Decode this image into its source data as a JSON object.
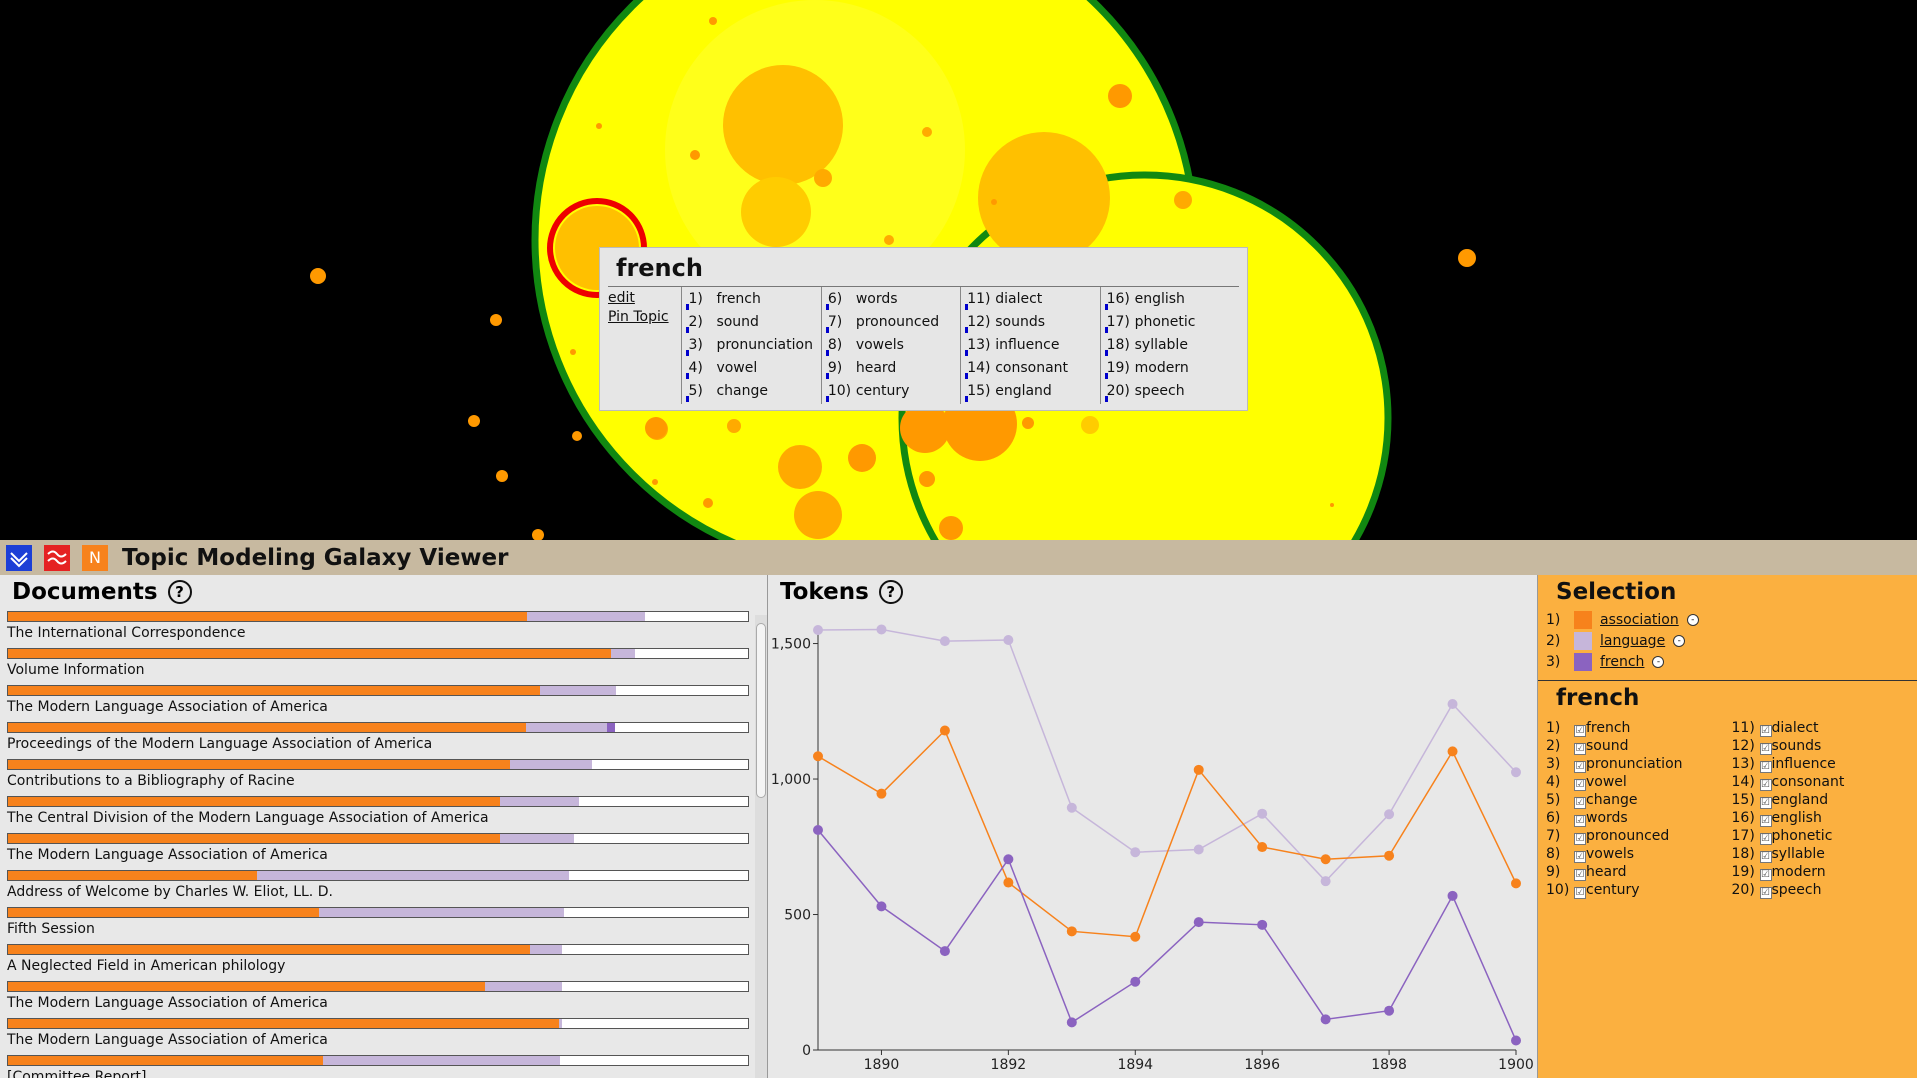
{
  "app": {
    "title": "Topic Modeling Galaxy Viewer"
  },
  "popup": {
    "title": "french",
    "edit_label": "edit",
    "pin_label": "Pin Topic",
    "words": [
      {
        "num": "1)",
        "word": "french"
      },
      {
        "num": "2)",
        "word": "sound"
      },
      {
        "num": "3)",
        "word": "pronunciation"
      },
      {
        "num": "4)",
        "word": "vowel"
      },
      {
        "num": "5)",
        "word": "change"
      },
      {
        "num": "6)",
        "word": "words"
      },
      {
        "num": "7)",
        "word": "pronounced"
      },
      {
        "num": "8)",
        "word": "vowels"
      },
      {
        "num": "9)",
        "word": "heard"
      },
      {
        "num": "10)",
        "word": "century"
      },
      {
        "num": "11)",
        "word": "dialect"
      },
      {
        "num": "12)",
        "word": "sounds"
      },
      {
        "num": "13)",
        "word": "influence"
      },
      {
        "num": "14)",
        "word": "consonant"
      },
      {
        "num": "15)",
        "word": "england"
      },
      {
        "num": "16)",
        "word": "english"
      },
      {
        "num": "17)",
        "word": "phonetic"
      },
      {
        "num": "18)",
        "word": "syllable"
      },
      {
        "num": "19)",
        "word": "modern"
      },
      {
        "num": "20)",
        "word": "speech"
      }
    ]
  },
  "documents": {
    "title": "Documents",
    "help": "?",
    "items": [
      {
        "title": "The International Correspondence",
        "assoc": 0.701,
        "lang": 0.16,
        "french": 0
      },
      {
        "title": "Volume Information",
        "assoc": 0.815,
        "lang": 0.032,
        "french": 0
      },
      {
        "title": "The Modern Language Association of America",
        "assoc": 0.719,
        "lang": 0.103,
        "french": 0
      },
      {
        "title": "Proceedings of the Modern Language Association of America",
        "assoc": 0.7,
        "lang": 0.11,
        "french": 0.01
      },
      {
        "title": "Contributions to a Bibliography of Racine",
        "assoc": 0.679,
        "lang": 0.11,
        "french": 0
      },
      {
        "title": "The Central Division of the Modern Language Association of America",
        "assoc": 0.665,
        "lang": 0.107,
        "french": 0
      },
      {
        "title": "The Modern Language Association of America",
        "assoc": 0.665,
        "lang": 0.1,
        "french": 0
      },
      {
        "title": "Address of Welcome by Charles W. Eliot, LL. D.",
        "assoc": 0.336,
        "lang": 0.422,
        "french": 0
      },
      {
        "title": "Fifth Session",
        "assoc": 0.42,
        "lang": 0.332,
        "french": 0
      },
      {
        "title": "A Neglected Field in American philology",
        "assoc": 0.706,
        "lang": 0.042,
        "french": 0
      },
      {
        "title": "The Modern Language Association of America",
        "assoc": 0.645,
        "lang": 0.103,
        "french": 0
      },
      {
        "title": "The Modern Language Association of America",
        "assoc": 0.745,
        "lang": 0.003,
        "french": 0
      },
      {
        "title": "[Committee Report]",
        "assoc": 0.426,
        "lang": 0.32,
        "french": 0
      }
    ]
  },
  "tokens": {
    "title": "Tokens",
    "help": "?"
  },
  "chart_data": {
    "type": "line",
    "x": [
      1889,
      1890,
      1891,
      1892,
      1893,
      1894,
      1895,
      1896,
      1897,
      1898,
      1899,
      1900
    ],
    "xticks": [
      "1890",
      "1892",
      "1894",
      "1896",
      "1898",
      "1900"
    ],
    "yticks": [
      "0",
      "500",
      "1,000",
      "1,500"
    ],
    "ylim": [
      0,
      1550
    ],
    "xlim": [
      1889,
      1900
    ],
    "series": [
      {
        "name": "language",
        "color": "#c6b6da",
        "values": [
          1550,
          1552,
          1509,
          1513,
          894,
          730,
          740,
          872,
          623,
          870,
          1277,
          1025
        ]
      },
      {
        "name": "association",
        "color": "#f7821c",
        "values": [
          1084,
          946,
          1179,
          618,
          438,
          418,
          1034,
          749,
          704,
          717,
          1102,
          615
        ]
      },
      {
        "name": "french",
        "color": "#8b63c0",
        "values": [
          812,
          530,
          365,
          704,
          102,
          252,
          472,
          462,
          113,
          145,
          569,
          35
        ]
      }
    ]
  },
  "selection": {
    "title": "Selection",
    "items": [
      {
        "num": "1)",
        "label": "association",
        "color": "#f7821c"
      },
      {
        "num": "2)",
        "label": "language",
        "color": "#c6b6da"
      },
      {
        "num": "3)",
        "label": "french",
        "color": "#8b63c0"
      }
    ],
    "topic_title": "french",
    "check": "☑",
    "minus": "-"
  },
  "colors": {
    "header": "#c7b9a0",
    "selection_panel": "#fbb040",
    "galaxy_bg": "#000000"
  }
}
